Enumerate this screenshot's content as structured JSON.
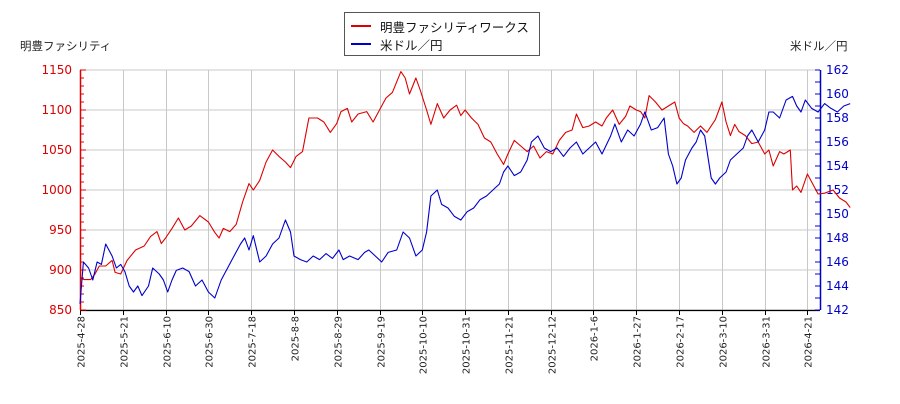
{
  "chart_data": {
    "type": "line",
    "title": "",
    "legend": {
      "position": "top-center",
      "entries": [
        {
          "name": "明豊ファシリティワークス",
          "color": "#dd0000",
          "axis": "left"
        },
        {
          "name": "米ドル／円",
          "color": "#0000cc",
          "axis": "right"
        }
      ]
    },
    "left_axis": {
      "label": "明豊ファシリティ",
      "color": "#dd0000",
      "range": [
        850,
        1150
      ],
      "ticks": [
        850,
        900,
        950,
        1000,
        1050,
        1100,
        1150
      ]
    },
    "right_axis": {
      "label": "米ドル／円",
      "color": "#0000cc",
      "range": [
        142,
        162
      ],
      "ticks": [
        142,
        144,
        146,
        148,
        150,
        152,
        154,
        156,
        158,
        160,
        162
      ]
    },
    "x_axis": {
      "tick_labels": [
        "2025-4-28",
        "2025-5-21",
        "2025-6-10",
        "2025-6-30",
        "2025-7-18",
        "2025-8-8",
        "2025-8-29",
        "2025-9-19",
        "2025-10-10",
        "2025-10-31",
        "2025-11-21",
        "2025-12-12",
        "2026-1-6",
        "2026-1-27",
        "2026-2-17",
        "2026-3-10",
        "2026-3-31",
        "2026-4-21"
      ]
    },
    "grid": true,
    "series": [
      {
        "name": "明豊ファシリティワークス",
        "axis": "left",
        "color": "#dd0000",
        "x_index": [
          0,
          1,
          2,
          3,
          4,
          5,
          6,
          7,
          8,
          9,
          10,
          11,
          12,
          13,
          14,
          15,
          16,
          17
        ],
        "values": [
          890,
          920,
          955,
          945,
          950,
          1035,
          1080,
          1095,
          1115,
          1090,
          1045,
          1045,
          1090,
          1100,
          1075,
          1050,
          1010,
          978
        ],
        "points": [
          [
            0,
            890
          ],
          [
            0.1,
            888
          ],
          [
            0.25,
            888
          ],
          [
            0.35,
            895
          ],
          [
            0.45,
            905
          ],
          [
            0.6,
            905
          ],
          [
            0.75,
            912
          ],
          [
            0.82,
            897
          ],
          [
            0.95,
            895
          ],
          [
            1.1,
            912
          ],
          [
            1.3,
            925
          ],
          [
            1.5,
            930
          ],
          [
            1.65,
            942
          ],
          [
            1.8,
            948
          ],
          [
            1.9,
            933
          ],
          [
            2.0,
            940
          ],
          [
            2.15,
            952
          ],
          [
            2.3,
            965
          ],
          [
            2.45,
            950
          ],
          [
            2.6,
            955
          ],
          [
            2.8,
            968
          ],
          [
            3.0,
            960
          ],
          [
            3.15,
            947
          ],
          [
            3.25,
            940
          ],
          [
            3.35,
            952
          ],
          [
            3.5,
            948
          ],
          [
            3.65,
            957
          ],
          [
            3.8,
            985
          ],
          [
            3.95,
            1008
          ],
          [
            4.05,
            1000
          ],
          [
            4.2,
            1012
          ],
          [
            4.35,
            1035
          ],
          [
            4.5,
            1050
          ],
          [
            4.65,
            1042
          ],
          [
            4.8,
            1035
          ],
          [
            4.92,
            1028
          ],
          [
            5.05,
            1042
          ],
          [
            5.2,
            1048
          ],
          [
            5.35,
            1090
          ],
          [
            5.55,
            1090
          ],
          [
            5.7,
            1085
          ],
          [
            5.85,
            1072
          ],
          [
            6.0,
            1083
          ],
          [
            6.1,
            1098
          ],
          [
            6.25,
            1102
          ],
          [
            6.35,
            1085
          ],
          [
            6.5,
            1095
          ],
          [
            6.7,
            1098
          ],
          [
            6.85,
            1085
          ],
          [
            7.0,
            1100
          ],
          [
            7.15,
            1115
          ],
          [
            7.3,
            1122
          ],
          [
            7.5,
            1148
          ],
          [
            7.6,
            1140
          ],
          [
            7.7,
            1120
          ],
          [
            7.85,
            1140
          ],
          [
            7.95,
            1125
          ],
          [
            8.1,
            1100
          ],
          [
            8.2,
            1082
          ],
          [
            8.35,
            1108
          ],
          [
            8.5,
            1090
          ],
          [
            8.65,
            1100
          ],
          [
            8.8,
            1106
          ],
          [
            8.9,
            1093
          ],
          [
            9.0,
            1100
          ],
          [
            9.15,
            1090
          ],
          [
            9.3,
            1082
          ],
          [
            9.45,
            1065
          ],
          [
            9.6,
            1060
          ],
          [
            9.75,
            1045
          ],
          [
            9.9,
            1032
          ],
          [
            10.0,
            1045
          ],
          [
            10.15,
            1062
          ],
          [
            10.3,
            1055
          ],
          [
            10.45,
            1048
          ],
          [
            10.6,
            1055
          ],
          [
            10.75,
            1040
          ],
          [
            10.9,
            1048
          ],
          [
            11.05,
            1045
          ],
          [
            11.2,
            1062
          ],
          [
            11.35,
            1072
          ],
          [
            11.5,
            1075
          ],
          [
            11.6,
            1095
          ],
          [
            11.75,
            1078
          ],
          [
            11.9,
            1080
          ],
          [
            12.05,
            1085
          ],
          [
            12.2,
            1080
          ],
          [
            12.3,
            1090
          ],
          [
            12.45,
            1100
          ],
          [
            12.6,
            1082
          ],
          [
            12.75,
            1092
          ],
          [
            12.85,
            1105
          ],
          [
            13.0,
            1100
          ],
          [
            13.1,
            1098
          ],
          [
            13.2,
            1090
          ],
          [
            13.3,
            1118
          ],
          [
            13.45,
            1110
          ],
          [
            13.6,
            1100
          ],
          [
            13.75,
            1105
          ],
          [
            13.9,
            1110
          ],
          [
            14.0,
            1090
          ],
          [
            14.1,
            1083
          ],
          [
            14.2,
            1080
          ],
          [
            14.35,
            1072
          ],
          [
            14.5,
            1080
          ],
          [
            14.65,
            1072
          ],
          [
            14.85,
            1088
          ],
          [
            15.0,
            1110
          ],
          [
            15.1,
            1085
          ],
          [
            15.2,
            1068
          ],
          [
            15.3,
            1082
          ],
          [
            15.4,
            1073
          ],
          [
            15.55,
            1068
          ],
          [
            15.7,
            1058
          ],
          [
            15.85,
            1060
          ],
          [
            16.0,
            1045
          ],
          [
            16.1,
            1050
          ],
          [
            16.2,
            1030
          ],
          [
            16.35,
            1048
          ],
          [
            16.45,
            1045
          ],
          [
            16.6,
            1050
          ],
          [
            16.65,
            1000
          ],
          [
            16.75,
            1005
          ],
          [
            16.85,
            997
          ],
          [
            17.0,
            1020
          ],
          [
            17.1,
            1010
          ],
          [
            17.25,
            995
          ],
          [
            17.4,
            996
          ],
          [
            17.6,
            1000
          ],
          [
            17.75,
            990
          ],
          [
            17.9,
            985
          ],
          [
            18.0,
            978
          ]
        ]
      },
      {
        "name": "米ドル／円",
        "axis": "right",
        "color": "#0000cc",
        "x_index": [
          0,
          1,
          2,
          3,
          4,
          5,
          6,
          7,
          8,
          9,
          10,
          11,
          12,
          13,
          14,
          15,
          16,
          17
        ],
        "values": [
          142.5,
          144.0,
          145.0,
          144.5,
          147.5,
          147.0,
          147.0,
          147.5,
          151.0,
          153.5,
          156.0,
          155.5,
          157.0,
          153.0,
          157.5,
          158.0,
          158.8,
          159.2
        ],
        "points": [
          [
            0,
            142.5
          ],
          [
            0.08,
            146.0
          ],
          [
            0.2,
            145.5
          ],
          [
            0.3,
            144.5
          ],
          [
            0.4,
            146.0
          ],
          [
            0.5,
            145.8
          ],
          [
            0.6,
            147.5
          ],
          [
            0.75,
            146.5
          ],
          [
            0.85,
            145.5
          ],
          [
            0.95,
            145.8
          ],
          [
            1.05,
            145.2
          ],
          [
            1.15,
            144.0
          ],
          [
            1.25,
            143.5
          ],
          [
            1.35,
            144.0
          ],
          [
            1.45,
            143.2
          ],
          [
            1.6,
            144.0
          ],
          [
            1.7,
            145.5
          ],
          [
            1.85,
            145.0
          ],
          [
            1.95,
            144.5
          ],
          [
            2.05,
            143.5
          ],
          [
            2.15,
            144.5
          ],
          [
            2.25,
            145.3
          ],
          [
            2.4,
            145.5
          ],
          [
            2.55,
            145.2
          ],
          [
            2.7,
            144.0
          ],
          [
            2.85,
            144.5
          ],
          [
            3.0,
            143.5
          ],
          [
            3.15,
            143.0
          ],
          [
            3.3,
            144.5
          ],
          [
            3.45,
            145.5
          ],
          [
            3.6,
            146.5
          ],
          [
            3.75,
            147.5
          ],
          [
            3.85,
            148.0
          ],
          [
            3.95,
            147.0
          ],
          [
            4.05,
            148.2
          ],
          [
            4.2,
            146.0
          ],
          [
            4.35,
            146.5
          ],
          [
            4.5,
            147.5
          ],
          [
            4.65,
            148.0
          ],
          [
            4.8,
            149.5
          ],
          [
            4.92,
            148.5
          ],
          [
            5.0,
            146.5
          ],
          [
            5.15,
            146.2
          ],
          [
            5.3,
            146.0
          ],
          [
            5.45,
            146.5
          ],
          [
            5.6,
            146.2
          ],
          [
            5.75,
            146.7
          ],
          [
            5.9,
            146.3
          ],
          [
            6.05,
            147.0
          ],
          [
            6.15,
            146.2
          ],
          [
            6.3,
            146.5
          ],
          [
            6.5,
            146.2
          ],
          [
            6.65,
            146.8
          ],
          [
            6.75,
            147.0
          ],
          [
            6.9,
            146.5
          ],
          [
            7.05,
            146.0
          ],
          [
            7.2,
            146.8
          ],
          [
            7.4,
            147.0
          ],
          [
            7.55,
            148.5
          ],
          [
            7.7,
            148.0
          ],
          [
            7.85,
            146.5
          ],
          [
            8.0,
            147.0
          ],
          [
            8.1,
            148.5
          ],
          [
            8.2,
            151.5
          ],
          [
            8.35,
            152.0
          ],
          [
            8.45,
            150.8
          ],
          [
            8.6,
            150.5
          ],
          [
            8.75,
            149.8
          ],
          [
            8.9,
            149.5
          ],
          [
            9.05,
            150.2
          ],
          [
            9.2,
            150.5
          ],
          [
            9.35,
            151.2
          ],
          [
            9.5,
            151.5
          ],
          [
            9.65,
            152.0
          ],
          [
            9.8,
            152.5
          ],
          [
            9.9,
            153.5
          ],
          [
            10.0,
            154.0
          ],
          [
            10.15,
            153.2
          ],
          [
            10.3,
            153.5
          ],
          [
            10.45,
            154.5
          ],
          [
            10.55,
            156.0
          ],
          [
            10.7,
            156.5
          ],
          [
            10.85,
            155.5
          ],
          [
            11.0,
            155.2
          ],
          [
            11.15,
            155.5
          ],
          [
            11.3,
            154.8
          ],
          [
            11.45,
            155.5
          ],
          [
            11.6,
            156.0
          ],
          [
            11.75,
            155.0
          ],
          [
            11.9,
            155.5
          ],
          [
            12.05,
            156.0
          ],
          [
            12.2,
            155.0
          ],
          [
            12.4,
            156.5
          ],
          [
            12.5,
            157.5
          ],
          [
            12.65,
            156.0
          ],
          [
            12.8,
            157.0
          ],
          [
            12.95,
            156.5
          ],
          [
            13.1,
            157.5
          ],
          [
            13.2,
            158.5
          ],
          [
            13.35,
            157.0
          ],
          [
            13.5,
            157.2
          ],
          [
            13.65,
            158.0
          ],
          [
            13.75,
            155.0
          ],
          [
            13.85,
            154.0
          ],
          [
            13.95,
            152.5
          ],
          [
            14.05,
            153.0
          ],
          [
            14.15,
            154.5
          ],
          [
            14.3,
            155.5
          ],
          [
            14.4,
            156.0
          ],
          [
            14.5,
            157.0
          ],
          [
            14.6,
            156.5
          ],
          [
            14.75,
            153.0
          ],
          [
            14.85,
            152.5
          ],
          [
            14.95,
            153.0
          ],
          [
            15.1,
            153.5
          ],
          [
            15.2,
            154.5
          ],
          [
            15.35,
            155.0
          ],
          [
            15.5,
            155.5
          ],
          [
            15.6,
            156.5
          ],
          [
            15.7,
            157.0
          ],
          [
            15.85,
            156.0
          ],
          [
            16.0,
            157.0
          ],
          [
            16.1,
            158.5
          ],
          [
            16.2,
            158.5
          ],
          [
            16.35,
            158.0
          ],
          [
            16.5,
            159.5
          ],
          [
            16.65,
            159.8
          ],
          [
            16.75,
            159.0
          ],
          [
            16.85,
            158.5
          ],
          [
            16.95,
            159.5
          ],
          [
            17.1,
            158.8
          ],
          [
            17.25,
            158.5
          ],
          [
            17.4,
            159.2
          ],
          [
            17.55,
            158.8
          ],
          [
            17.7,
            158.5
          ],
          [
            17.85,
            159.0
          ],
          [
            18.0,
            159.2
          ]
        ]
      }
    ]
  }
}
